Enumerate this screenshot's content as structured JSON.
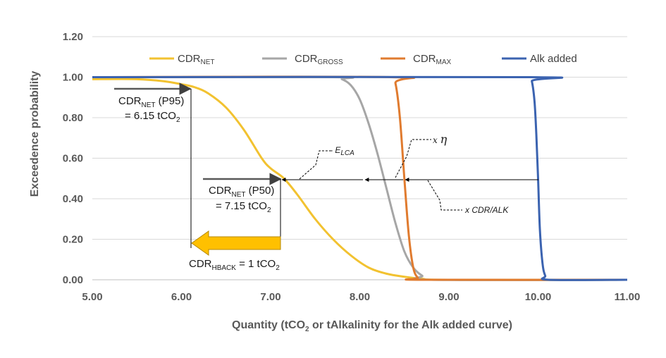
{
  "chart_data": {
    "type": "line",
    "xlabel": "Quantity (tCO2 or tAlkalinity for the Alk added curve)",
    "xlabel_parts": {
      "a": "Quantity (tCO",
      "sub": "2",
      "b": " or tAlkalinity for the Alk added curve)"
    },
    "ylabel": "Exceedence probability",
    "xlim": [
      5.0,
      11.0
    ],
    "ylim": [
      0.0,
      1.2
    ],
    "x_ticks": [
      "5.00",
      "6.00",
      "7.00",
      "8.00",
      "9.00",
      "10.00",
      "11.00"
    ],
    "y_ticks": [
      "0.00",
      "0.20",
      "0.40",
      "0.60",
      "0.80",
      "1.00",
      "1.20"
    ],
    "grid": "horizontal",
    "legend_position": "top",
    "series": [
      {
        "name": "CDR_NET",
        "name_main": "CDR",
        "name_sub": "NET",
        "color": "#F2C230",
        "x": [
          5.0,
          5.5,
          5.8,
          6.0,
          6.15,
          6.3,
          6.5,
          6.7,
          6.9,
          7.0,
          7.15,
          7.3,
          7.5,
          7.7,
          7.9,
          8.1,
          8.3,
          8.5,
          8.7,
          9.0,
          11.0
        ],
        "y": [
          0.99,
          0.99,
          0.98,
          0.965,
          0.95,
          0.92,
          0.85,
          0.74,
          0.6,
          0.55,
          0.5,
          0.42,
          0.3,
          0.2,
          0.12,
          0.06,
          0.03,
          0.015,
          0.005,
          0.0,
          0.0
        ]
      },
      {
        "name": "CDR_GROSS",
        "name_main": "CDR",
        "name_sub": "GROSS",
        "color": "#A6A6A6",
        "x": [
          5.0,
          7.7,
          7.8,
          7.9,
          8.0,
          8.1,
          8.2,
          8.3,
          8.4,
          8.5,
          8.6,
          8.7,
          8.8,
          11.0
        ],
        "y": [
          1.0,
          1.0,
          0.99,
          0.96,
          0.89,
          0.77,
          0.62,
          0.45,
          0.28,
          0.14,
          0.06,
          0.02,
          0.0,
          0.0
        ]
      },
      {
        "name": "CDR_MAX",
        "name_main": "CDR",
        "name_sub": "MAX",
        "color": "#E07B2F",
        "x": [
          5.0,
          8.35,
          8.4,
          8.45,
          8.5,
          8.55,
          8.6,
          8.65,
          8.7,
          11.0
        ],
        "y": [
          1.0,
          1.0,
          0.97,
          0.8,
          0.5,
          0.22,
          0.06,
          0.01,
          0.0,
          0.0
        ]
      },
      {
        "name": "Alk added",
        "name_main": "Alk added",
        "name_sub": "",
        "color": "#3B63B0",
        "x": [
          5.0,
          9.9,
          9.93,
          9.96,
          9.98,
          10.0,
          10.02,
          10.05,
          10.08,
          10.12,
          11.0
        ],
        "y": [
          1.0,
          1.0,
          0.98,
          0.88,
          0.72,
          0.5,
          0.25,
          0.08,
          0.02,
          0.0,
          0.0
        ]
      }
    ],
    "annotations": {
      "p95_label_main": "CDR",
      "p95_label_sub": "NET",
      "p95_label_rest": " (P95)",
      "p95_value_a": "= 6.15 tCO",
      "p95_value_sub": "2",
      "p50_label_main": "CDR",
      "p50_label_sub": "NET",
      "p50_label_rest": " (P50)",
      "p50_value_a": "= 7.15 tCO",
      "p50_value_sub": "2",
      "hback_main": "CDR",
      "hback_sub": "HBACK",
      "hback_rest": " = 1 tCO",
      "hback_rest_sub": "2",
      "elca_prefix": "- E",
      "elca_sub": "LCA",
      "eta_prefix": "x ",
      "eta_symbol": "η",
      "cdr_alk": "x CDR/ALK"
    }
  }
}
